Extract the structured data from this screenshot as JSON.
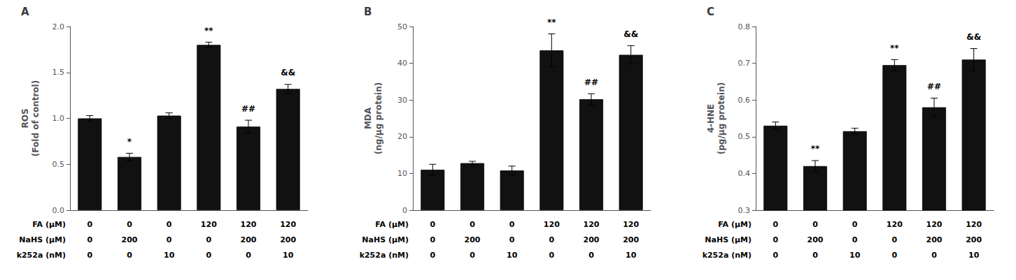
{
  "chart_data": [
    {
      "type": "bar",
      "title": "A",
      "ylabel": "ROS\n(Fold of control)",
      "categories": [
        null,
        null,
        null,
        null,
        null,
        null
      ],
      "values": [
        1.0,
        0.58,
        1.03,
        1.8,
        0.91,
        1.32
      ],
      "errors": [
        0.03,
        0.04,
        0.03,
        0.03,
        0.07,
        0.05
      ],
      "annotations": [
        null,
        "*",
        null,
        "**",
        "##",
        "&&"
      ],
      "table": [
        {
          "label": "FA (μM)",
          "values": [
            "0",
            "0",
            "0",
            "120",
            "120",
            "120"
          ]
        },
        {
          "label": "NaHS (μM)",
          "values": [
            "0",
            "200",
            "0",
            "0",
            "200",
            "200"
          ]
        },
        {
          "label": "k252a (nM)",
          "values": [
            "0",
            "0",
            "10",
            "0",
            "0",
            "10"
          ]
        }
      ],
      "color": "#111111",
      "ylim": [
        0,
        2.0
      ],
      "yticks": [
        {
          "value": 0.0,
          "label": "0.0"
        },
        0.5,
        {
          "value": 1.0,
          "label": "1.0"
        },
        1.5,
        {
          "value": 2.0,
          "label": "2.0"
        }
      ],
      "grid": false,
      "tick_labels": "y"
    },
    {
      "type": "bar",
      "title": "B",
      "ylabel": "MDA\n(ng/μg protein)",
      "categories": [
        null,
        null,
        null,
        null,
        null,
        null
      ],
      "values": [
        11.0,
        12.8,
        10.8,
        43.5,
        30.2,
        42.3
      ],
      "errors": [
        1.5,
        0.5,
        1.2,
        4.5,
        1.5,
        2.5
      ],
      "annotations": [
        null,
        null,
        null,
        "**",
        "##",
        "&&"
      ],
      "table": [
        {
          "label": "FA (μM)",
          "values": [
            "0",
            "0",
            "0",
            "120",
            "120",
            "120"
          ]
        },
        {
          "label": "NaHS (μM)",
          "values": [
            "0",
            "200",
            "0",
            "0",
            "200",
            "200"
          ]
        },
        {
          "label": "k252a (nM)",
          "values": [
            "0",
            "0",
            "10",
            "0",
            "0",
            "10"
          ]
        }
      ],
      "color": "#111111",
      "ylim": [
        0,
        50
      ],
      "yticks": [
        0,
        10,
        20,
        30,
        40,
        50
      ],
      "grid": false,
      "tick_labels": "y"
    },
    {
      "type": "bar",
      "title": "C",
      "ylabel": "4-HNE\n(pg/μg protein)",
      "categories": [
        null,
        null,
        null,
        null,
        null,
        null
      ],
      "values": [
        0.53,
        0.42,
        0.515,
        0.695,
        0.58,
        0.71
      ],
      "errors": [
        0.01,
        0.015,
        0.008,
        0.015,
        0.025,
        0.03
      ],
      "annotations": [
        null,
        "**",
        null,
        "**",
        "##",
        "&&"
      ],
      "table": [
        {
          "label": "FA (μM)",
          "values": [
            "0",
            "0",
            "0",
            "120",
            "120",
            "120"
          ]
        },
        {
          "label": "NaHS (μM)",
          "values": [
            "0",
            "200",
            "0",
            "0",
            "200",
            "200"
          ]
        },
        {
          "label": "k252a (nM)",
          "values": [
            "0",
            "0",
            "10",
            "0",
            "0",
            "10"
          ]
        }
      ],
      "color": "#111111",
      "ylim": [
        0.3,
        0.8
      ],
      "yticks": [
        0.3,
        0.4,
        0.5,
        0.6,
        0.7,
        0.8
      ],
      "grid": false,
      "tick_labels": "y"
    }
  ]
}
